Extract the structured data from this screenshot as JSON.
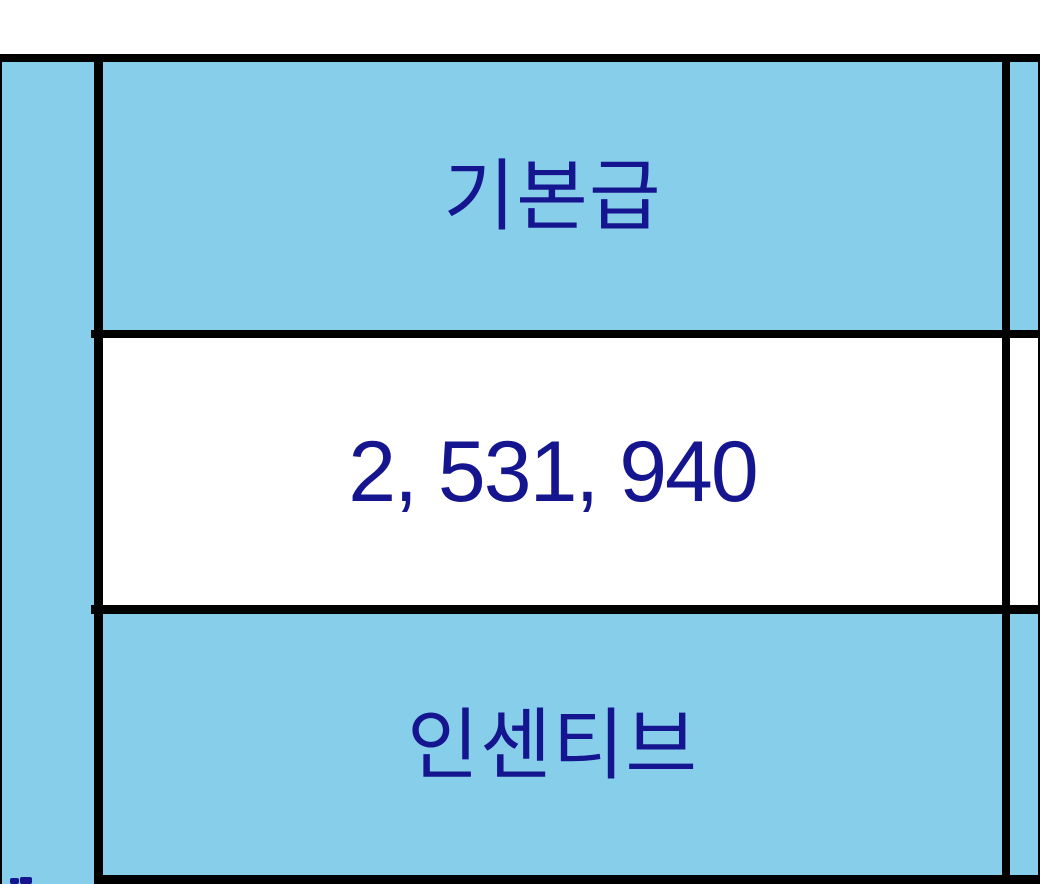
{
  "table": {
    "main_column": {
      "row1_label": "기본급",
      "row2_value": "2, 531, 940",
      "row3_label": "인센티브"
    },
    "left_column": {
      "content": ""
    },
    "right_column": {
      "content": ""
    }
  },
  "colors": {
    "cell_fill_blue": "#87CEEB",
    "cell_fill_white": "#FFFFFF",
    "text_navy": "#15158F",
    "gridline_black": "#000000",
    "page_background": "#FFFFFF"
  }
}
